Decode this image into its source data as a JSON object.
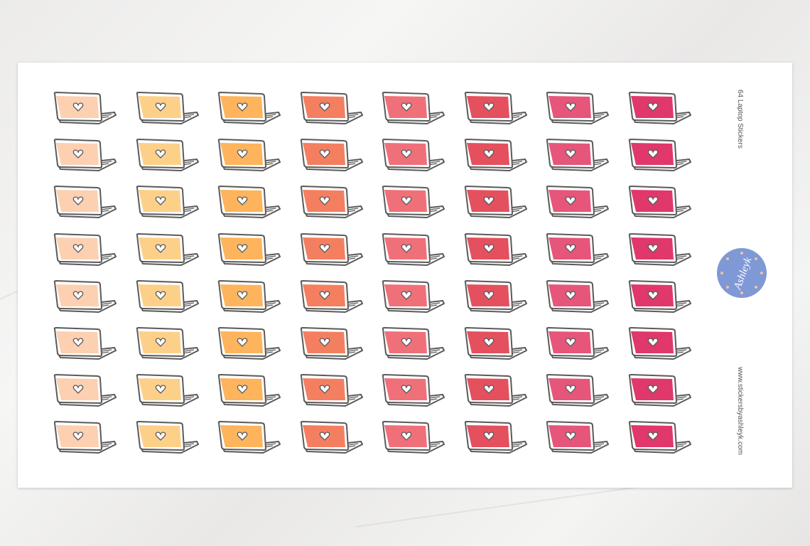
{
  "sheet": {
    "title": "64 Laptop Stickers",
    "website": "www.stickersbyashleyk.com",
    "logo_text": "by Ashleyk",
    "logo_color": "#7f98d6",
    "rows": 8,
    "columns": 8,
    "sticker_icon": "laptop-heart-icon",
    "outline_color": "#5a5a5a",
    "column_colors": [
      "#fdd0b1",
      "#fdd08a",
      "#fdb45c",
      "#f47f60",
      "#f0707a",
      "#e5505e",
      "#e5567a",
      "#e0386a"
    ]
  }
}
